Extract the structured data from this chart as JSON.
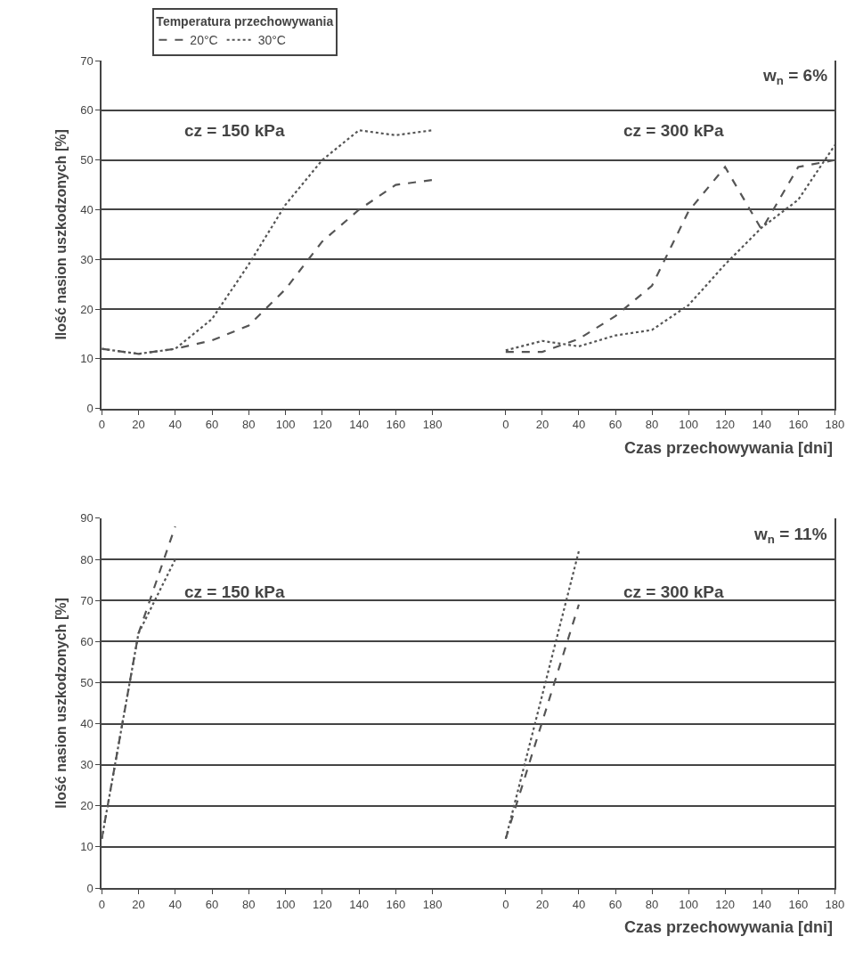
{
  "chart_data": [
    {
      "type": "line",
      "ylabel": "Ilość nasion uszkodzonych [%]",
      "legend_title": "Temperatura przechowywania",
      "legend": "top left",
      "grid": "y",
      "marker": "none",
      "annotations": [
        "cz = 150 kPa"
      ],
      "x": [
        0,
        20,
        40,
        60,
        80,
        100,
        120,
        140,
        160,
        180
      ],
      "xlim": [
        0,
        200
      ],
      "xticks": [
        0,
        20,
        40,
        60,
        80,
        100,
        120,
        140,
        160,
        180
      ],
      "ylim": [
        0,
        70
      ],
      "yticks": [
        0,
        10,
        20,
        30,
        40,
        50,
        60,
        70
      ],
      "series": [
        {
          "name": "20°C",
          "color": "#555555",
          "line_style": "dashed",
          "values": [
            12,
            11,
            12,
            13.7,
            16.7,
            24,
            33.6,
            40,
            45,
            46
          ]
        },
        {
          "name": "30°C",
          "color": "#555555",
          "line_style": "dotted",
          "values": [
            12,
            11,
            12,
            18,
            29,
            41,
            50,
            56,
            55,
            56
          ]
        }
      ]
    },
    {
      "type": "line",
      "xlabel": "Czas przechowywania [dni]",
      "grid": "y",
      "marker": "none",
      "tick_labels": "x",
      "annotations": [
        "cz = 300 kPa",
        "w$_{n}$ = 6%"
      ],
      "x": [
        0,
        20,
        40,
        60,
        80,
        100,
        120,
        140,
        160,
        180
      ],
      "xlim": [
        -20,
        180
      ],
      "xticks": [
        0,
        20,
        40,
        60,
        80,
        100,
        120,
        140,
        160,
        180
      ],
      "ylim": [
        0,
        70
      ],
      "yticks": [
        0,
        10,
        20,
        30,
        40,
        50,
        60,
        70
      ],
      "series": [
        {
          "color": "#555555",
          "line_style": "dashed",
          "values": [
            11.4,
            11.4,
            14,
            18.6,
            24.7,
            39.7,
            48.6,
            36,
            48.6,
            50
          ]
        },
        {
          "color": "#555555",
          "line_style": "dotted",
          "values": [
            11.7,
            13.6,
            12.5,
            14.7,
            15.8,
            20.8,
            29,
            36.4,
            42,
            53
          ]
        }
      ]
    },
    {
      "type": "line",
      "ylabel": "Ilość nasion uszkodzonych [%]",
      "grid": "y",
      "marker": "none",
      "annotations": [
        "cz = 150 kPa"
      ],
      "x": [
        0,
        20,
        40
      ],
      "xlim": [
        0,
        200
      ],
      "xticks": [
        0,
        20,
        40,
        60,
        80,
        100,
        120,
        140,
        160,
        180
      ],
      "ylim": [
        0,
        90
      ],
      "yticks": [
        0,
        10,
        20,
        30,
        40,
        50,
        60,
        70,
        80,
        90
      ],
      "series": [
        {
          "color": "#555555",
          "line_style": "dashed",
          "values": [
            12,
            62,
            88
          ]
        },
        {
          "color": "#555555",
          "line_style": "dotted",
          "values": [
            12,
            62,
            80
          ]
        }
      ]
    },
    {
      "type": "line",
      "xlabel": "Czas przechowywania [dni]",
      "grid": "y",
      "marker": "none",
      "tick_labels": "x",
      "annotations": [
        "cz = 300 kPa",
        "w$_{n}$ = 11%"
      ],
      "x": [
        0,
        40
      ],
      "xlim": [
        -20,
        180
      ],
      "xticks": [
        0,
        20,
        40,
        60,
        80,
        100,
        120,
        140,
        160,
        180
      ],
      "ylim": [
        0,
        90
      ],
      "yticks": [
        0,
        10,
        20,
        30,
        40,
        50,
        60,
        70,
        80,
        90
      ],
      "series": [
        {
          "color": "#555555",
          "line_style": "dashed",
          "values": [
            12,
            69
          ]
        },
        {
          "color": "#555555",
          "line_style": "dotted",
          "values": [
            12,
            82
          ]
        }
      ]
    }
  ]
}
